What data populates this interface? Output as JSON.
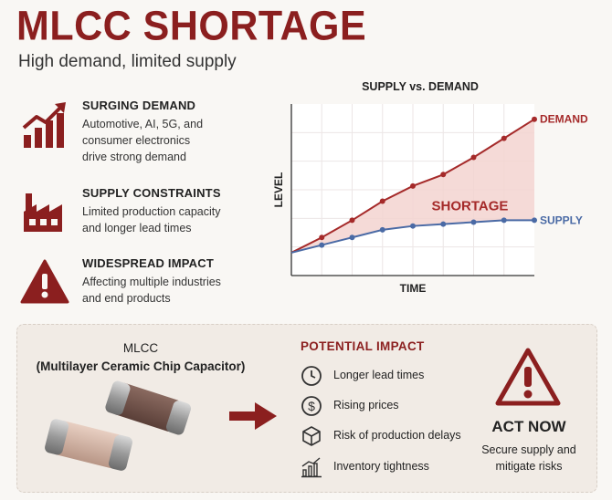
{
  "header": {
    "title": "MLCC SHORTAGE",
    "subtitle": "High demand, limited supply"
  },
  "factors": [
    {
      "icon": "growth-chart-icon",
      "title": "SURGING DEMAND",
      "desc": [
        "Automotive, AI, 5G, and",
        "consumer electronics",
        "drive strong demand"
      ]
    },
    {
      "icon": "factory-icon",
      "title": "SUPPLY CONSTRAINTS",
      "desc": [
        "Limited production capacity",
        "and longer lead times"
      ]
    },
    {
      "icon": "warning-icon",
      "title": "WIDESPREAD IMPACT",
      "desc": [
        "Affecting multiple industries",
        "and end products"
      ]
    }
  ],
  "chart_data": {
    "type": "line",
    "title": "SUPPLY vs. DEMAND",
    "xlabel": "TIME",
    "ylabel": "LEVEL",
    "x": [
      0,
      1,
      2,
      3,
      4,
      5,
      6,
      7,
      8
    ],
    "series": [
      {
        "name": "DEMAND",
        "color": "#a52a2a",
        "values": [
          12,
          20,
          29,
          39,
          47,
          53,
          62,
          72,
          82
        ]
      },
      {
        "name": "SUPPLY",
        "color": "#4a6aa5",
        "values": [
          12,
          16,
          20,
          24,
          26,
          27,
          28,
          29,
          29
        ]
      }
    ],
    "annotation": "SHORTAGE",
    "ylim": [
      0,
      90
    ],
    "grid": true,
    "legend": "line-end labels"
  },
  "mlcc": {
    "name": "MLCC",
    "full_name": "(Multilayer Ceramic Chip Capacitor)"
  },
  "impact": {
    "title": "POTENTIAL IMPACT",
    "items": [
      {
        "icon": "clock-icon",
        "label": "Longer lead times"
      },
      {
        "icon": "dollar-icon",
        "label": "Rising prices"
      },
      {
        "icon": "box-icon",
        "label": "Risk of production delays"
      },
      {
        "icon": "bar-chart-icon",
        "label": "Inventory tightness"
      }
    ]
  },
  "action": {
    "title": "ACT NOW",
    "desc": [
      "Secure supply and",
      "mitigate risks"
    ]
  },
  "colors": {
    "brand": "#8b1f1f",
    "demand": "#a52a2a",
    "supply": "#4a6aa5",
    "shortage_fill": "#f3d4d0"
  }
}
